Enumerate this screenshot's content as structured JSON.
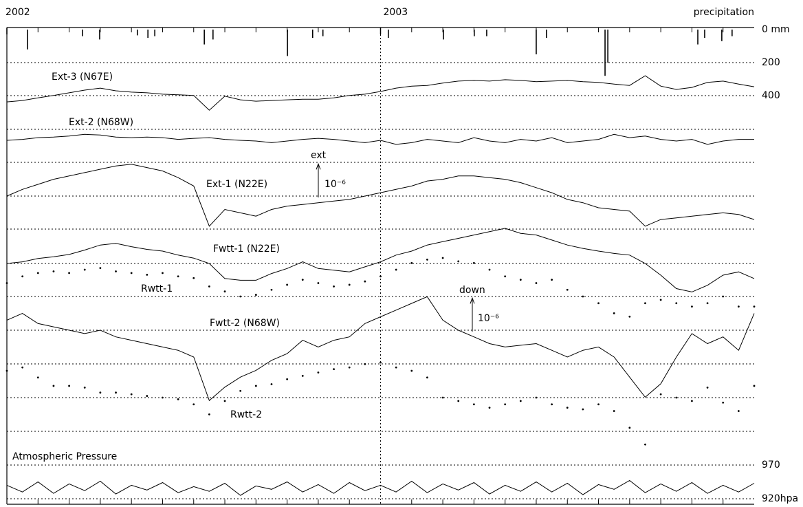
{
  "chart_data": [
    {
      "type": "bar",
      "title": "precipitation",
      "x": [
        0.66,
        2.43,
        2.98,
        4.19,
        4.53,
        4.75,
        6.34,
        6.62,
        9.01,
        9.82,
        10.15,
        12.25,
        14.02,
        15.01,
        15.41,
        17.0,
        17.33,
        19.21,
        19.3,
        22.19,
        22.41,
        22.96,
        23.29
      ],
      "values": [
        120,
        40,
        60,
        35,
        50,
        40,
        90,
        60,
        160,
        50,
        40,
        50,
        60,
        40,
        40,
        150,
        50,
        280,
        200,
        90,
        50,
        70,
        40
      ],
      "ylim": [
        0,
        400
      ],
      "yticks": [
        {
          "value": 0,
          "label": "0  mm"
        },
        200,
        400
      ],
      "y_inverted": true,
      "grid": true,
      "color": "#000000"
    },
    {
      "type": "line",
      "xlim": [
        0,
        24
      ],
      "xticks": [
        {
          "value": 0,
          "label": "2002"
        },
        {
          "value": 12,
          "label": "2003"
        }
      ],
      "xminorticks": [
        1,
        2,
        3,
        4,
        5,
        6,
        7,
        8,
        9,
        10,
        11,
        13,
        14,
        15,
        16,
        17,
        18,
        19,
        20,
        21,
        22,
        23
      ],
      "x": [
        0,
        0.5,
        1,
        1.5,
        2,
        2.5,
        3,
        3.5,
        4,
        4.5,
        5,
        5.5,
        6,
        6.5,
        7,
        7.5,
        8,
        8.5,
        9,
        9.5,
        10,
        10.5,
        11,
        11.5,
        12,
        12.5,
        13,
        13.5,
        14,
        14.5,
        15,
        15.5,
        16,
        16.5,
        17,
        17.5,
        18,
        18.5,
        19,
        19.5,
        20,
        20.5,
        21,
        21.5,
        22,
        22.5,
        23,
        23.5,
        24
      ],
      "series": [
        {
          "name": "Ext-3 (N67E)",
          "style": "line",
          "values": [
            0.04,
            0.08,
            0.16,
            0.23,
            0.31,
            0.39,
            0.45,
            0.37,
            0.33,
            0.31,
            0.27,
            0.25,
            0.23,
            -0.21,
            0.21,
            0.1,
            0.06,
            0.08,
            0.1,
            0.12,
            0.12,
            0.16,
            0.23,
            0.27,
            0.35,
            0.45,
            0.51,
            0.53,
            0.6,
            0.66,
            0.68,
            0.66,
            0.7,
            0.68,
            0.64,
            0.66,
            0.68,
            0.64,
            0.62,
            0.57,
            0.53,
            0.82,
            0.51,
            0.41,
            0.47,
            0.62,
            0.66,
            0.57,
            0.49
          ]
        },
        {
          "name": "Ext-2 (N68W)",
          "style": "line",
          "values": [
            0.02,
            0.05,
            0.1,
            0.12,
            0.15,
            0.2,
            0.18,
            0.12,
            0.1,
            0.12,
            0.1,
            0.05,
            0.08,
            0.1,
            0.05,
            0.02,
            0.0,
            -0.05,
            0.0,
            0.05,
            0.08,
            0.05,
            0.0,
            -0.05,
            0.02,
            -0.1,
            -0.05,
            0.05,
            0.0,
            -0.05,
            0.1,
            0.0,
            -0.05,
            0.05,
            0.0,
            0.1,
            -0.05,
            0.0,
            0.05,
            0.2,
            0.1,
            0.15,
            0.05,
            0.0,
            0.05,
            -0.1,
            0.0,
            0.05,
            0.05
          ]
        },
        {
          "name": "Ext-1 (N22E)",
          "style": "line",
          "values": [
            0,
            0.2,
            0.35,
            0.5,
            0.6,
            0.7,
            0.8,
            0.9,
            0.95,
            0.85,
            0.75,
            0.55,
            0.3,
            -0.9,
            -0.4,
            -0.5,
            -0.6,
            -0.4,
            -0.3,
            -0.25,
            -0.2,
            -0.15,
            -0.1,
            0.0,
            0.1,
            0.2,
            0.3,
            0.45,
            0.5,
            0.6,
            0.6,
            0.55,
            0.5,
            0.4,
            0.25,
            0.1,
            -0.1,
            -0.2,
            -0.35,
            -0.4,
            -0.45,
            -0.9,
            -0.7,
            -0.65,
            -0.6,
            -0.55,
            -0.5,
            -0.55,
            -0.7
          ]
        },
        {
          "name": "Fwtt-1 (N22E)",
          "style": "line",
          "values": [
            0,
            0.05,
            0.15,
            0.2,
            0.27,
            0.4,
            0.55,
            0.6,
            0.5,
            0.42,
            0.37,
            0.25,
            0.16,
            0.0,
            -0.45,
            -0.5,
            -0.5,
            -0.3,
            -0.15,
            0.05,
            -0.15,
            -0.2,
            -0.25,
            -0.1,
            0.05,
            0.25,
            0.37,
            0.55,
            0.65,
            0.75,
            0.85,
            0.95,
            1.05,
            0.9,
            0.85,
            0.7,
            0.55,
            0.45,
            0.37,
            0.3,
            0.25,
            0.0,
            -0.35,
            -0.75,
            -0.85,
            -0.65,
            -0.35,
            -0.25,
            -0.45
          ]
        },
        {
          "name": "Rwtt-1",
          "style": "dots",
          "values": [
            0.4,
            0.6,
            0.7,
            0.75,
            0.7,
            0.8,
            0.85,
            0.75,
            0.7,
            0.65,
            0.7,
            0.6,
            0.55,
            0.3,
            0.15,
            0.0,
            0.05,
            0.2,
            0.35,
            0.5,
            0.4,
            0.3,
            0.35,
            0.45,
            0.6,
            0.8,
            1.0,
            1.1,
            1.15,
            1.05,
            1.0,
            0.8,
            0.6,
            0.5,
            0.4,
            0.5,
            0.2,
            0.0,
            -0.2,
            -0.5,
            -0.6,
            -0.2,
            -0.1,
            -0.2,
            -0.3,
            -0.2,
            0.0,
            -0.3,
            -0.3
          ]
        },
        {
          "name": "Fwtt-2 (N68W)",
          "style": "line",
          "values": [
            0.3,
            0.5,
            0.2,
            0.1,
            0.0,
            -0.1,
            0.0,
            -0.2,
            -0.3,
            -0.4,
            -0.5,
            -0.6,
            -0.8,
            -2.1,
            -1.7,
            -1.4,
            -1.2,
            -0.9,
            -0.7,
            -0.3,
            -0.5,
            -0.3,
            -0.2,
            0.2,
            0.4,
            0.6,
            0.8,
            1.0,
            0.3,
            0.0,
            -0.2,
            -0.4,
            -0.5,
            -0.45,
            -0.4,
            -0.6,
            -0.8,
            -0.6,
            -0.5,
            -0.8,
            -1.4,
            -2.0,
            -1.6,
            -0.8,
            -0.1,
            -0.4,
            -0.2,
            -0.6,
            0.5
          ]
        },
        {
          "name": "Rwtt-2",
          "style": "dots",
          "values": [
            0.8,
            0.9,
            0.6,
            0.35,
            0.35,
            0.3,
            0.15,
            0.15,
            0.1,
            0.05,
            0.0,
            -0.05,
            -0.2,
            -0.5,
            -0.1,
            0.2,
            0.35,
            0.4,
            0.55,
            0.65,
            0.75,
            0.85,
            0.9,
            1.0,
            1.05,
            0.9,
            0.8,
            0.6,
            0.0,
            -0.1,
            -0.2,
            -0.3,
            -0.2,
            -0.1,
            0.0,
            -0.2,
            -0.3,
            -0.35,
            -0.2,
            -0.4,
            -0.9,
            -1.4,
            0.1,
            0.0,
            -0.1,
            0.3,
            -0.15,
            -0.4,
            0.35
          ]
        }
      ],
      "scale_bars": [
        {
          "label": "ext",
          "unit": "10⁻⁶"
        },
        {
          "label": "down",
          "unit": "10⁻⁶"
        }
      ],
      "color": "#000000"
    },
    {
      "type": "line",
      "title": "Atmospheric Pressure",
      "x": [
        0,
        0.5,
        1,
        1.5,
        2,
        2.5,
        3,
        3.5,
        4,
        4.5,
        5,
        5.5,
        6,
        6.5,
        7,
        7.5,
        8,
        8.5,
        9,
        9.5,
        10,
        10.5,
        11,
        11.5,
        12,
        12.5,
        13,
        13.5,
        14,
        14.5,
        15,
        15.5,
        16,
        16.5,
        17,
        17.5,
        18,
        18.5,
        19,
        19.5,
        20,
        20.5,
        21,
        21.5,
        22,
        22.5,
        23,
        23.5,
        24
      ],
      "values": [
        940,
        930,
        945,
        928,
        942,
        932,
        946,
        927,
        940,
        933,
        944,
        929,
        938,
        931,
        943,
        925,
        939,
        934,
        945,
        930,
        941,
        928,
        944,
        932,
        940,
        930,
        946,
        929,
        942,
        933,
        944,
        927,
        940,
        931,
        945,
        930,
        943,
        926,
        941,
        934,
        947,
        929,
        942,
        931,
        944,
        928,
        940,
        930,
        943
      ],
      "ylim": [
        920,
        970
      ],
      "yticks": [
        970,
        {
          "value": 920,
          "label": "920hpa"
        }
      ],
      "grid": true,
      "color": "#000000"
    }
  ]
}
